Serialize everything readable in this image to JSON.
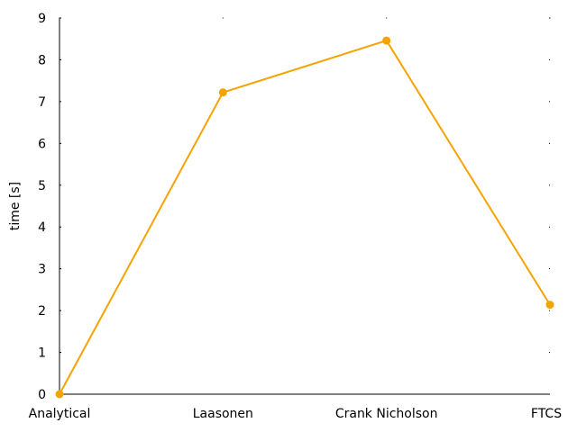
{
  "chart_data": {
    "type": "line",
    "title": "",
    "xlabel": "",
    "ylabel": "time [s]",
    "categories": [
      "Analytical",
      "Laasonen",
      "Crank Nicholson",
      "FTCS"
    ],
    "series": [
      {
        "values": [
          0.0,
          7.22,
          8.46,
          2.14
        ]
      }
    ],
    "ylim": [
      0,
      9
    ],
    "yticks": [
      "0",
      "1",
      "2",
      "3",
      "4",
      "5",
      "6",
      "7",
      "8",
      "9"
    ],
    "grid": false,
    "legend": "none",
    "colors": {
      "line": "#f5a300",
      "axis": "#000000"
    }
  }
}
